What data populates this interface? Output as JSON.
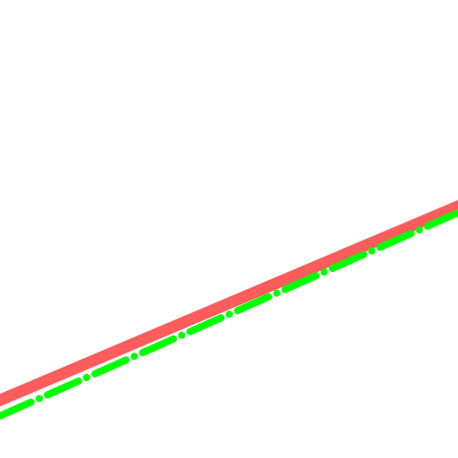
{
  "background_color": "#ffffff",
  "lines": [
    {
      "id": "red-solid-line",
      "style": "solid",
      "color": "#ff5c5c"
    },
    {
      "id": "green-dash-dot-line",
      "style": "dash-dot",
      "color": "#00ff00"
    }
  ]
}
